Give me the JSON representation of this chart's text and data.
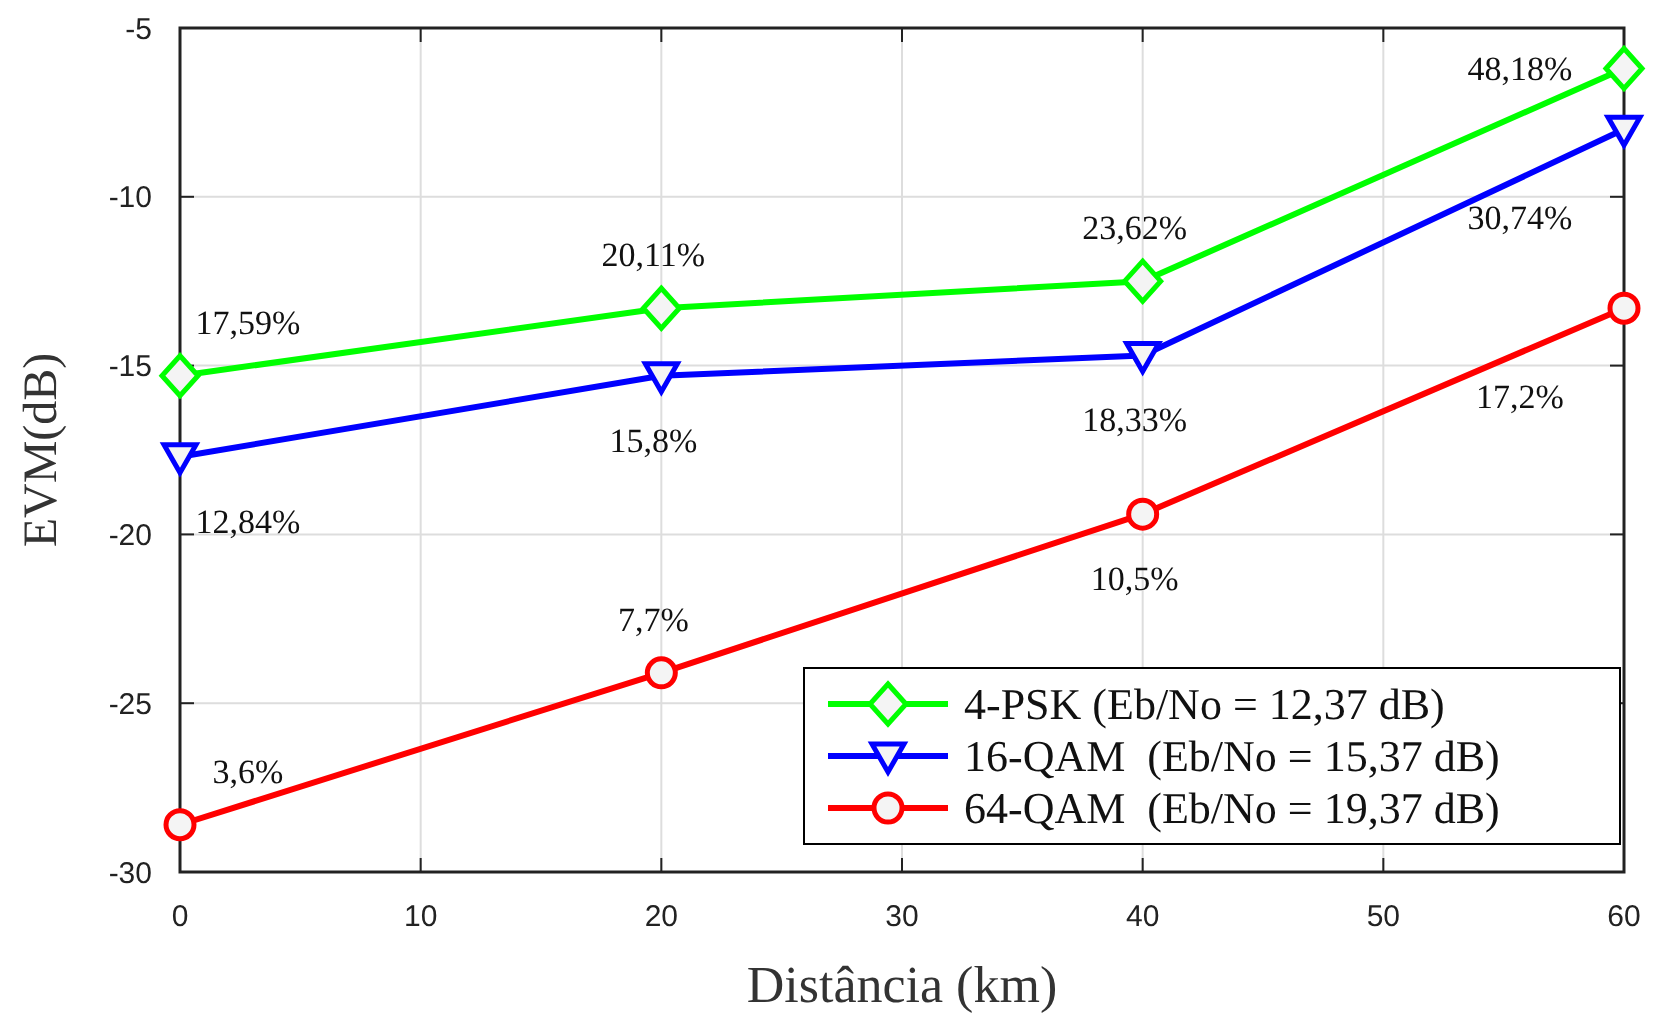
{
  "chart_data": {
    "type": "line",
    "xlabel": "Distância (km)",
    "ylabel": "EVM(dB)",
    "x": [
      0,
      20,
      40,
      60
    ],
    "series": [
      {
        "name": "4-PSK (Eb/No = 12,37 dB)",
        "color": "#00ff00",
        "marker": "diamond",
        "values": [
          -15.3,
          -13.3,
          -12.5,
          -6.2
        ]
      },
      {
        "name": "16-QAM  (Eb/No = 15,37 dB)",
        "color": "#0000ff",
        "marker": "triangle",
        "values": [
          -17.7,
          -15.3,
          -14.7,
          -8.0
        ]
      },
      {
        "name": "64-QAM  (Eb/No = 19,37 dB)",
        "color": "#ff0000",
        "marker": "circle",
        "values": [
          -28.6,
          -24.1,
          -19.4,
          -13.3
        ]
      }
    ],
    "xlim": [
      0,
      60
    ],
    "xticks": [
      0,
      10,
      20,
      30,
      40,
      50,
      60
    ],
    "ylim": [
      -30,
      -5
    ],
    "yticks": [
      -30,
      -25,
      -20,
      -15,
      -10,
      -5
    ],
    "grid": true,
    "legend": "bottom right",
    "line_style": "solid",
    "annotations": [
      "17,59%",
      "20,11%",
      "23,62%",
      "48,18%",
      "12,84%",
      "15,8%",
      "18,33%",
      "30,74%",
      "3,6%",
      "7,7%",
      "10,5%",
      "17,2%"
    ]
  }
}
